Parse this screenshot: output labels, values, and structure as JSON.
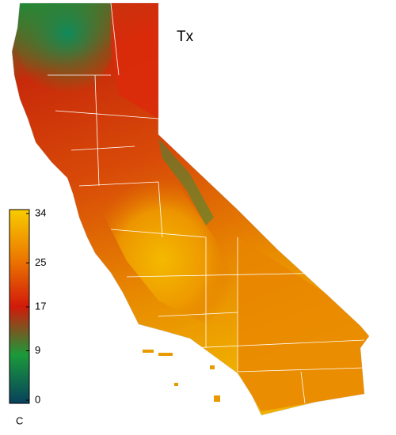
{
  "map": {
    "title": "Tx",
    "colorbar": {
      "lim": [
        0,
        34
      ],
      "ticks": [
        0,
        9,
        17,
        25,
        34
      ],
      "unit": "C",
      "colors": [
        "#08405c",
        "#1a9a3a",
        "#d21a0a",
        "#ec7a00",
        "#f8cc00"
      ]
    }
  }
}
